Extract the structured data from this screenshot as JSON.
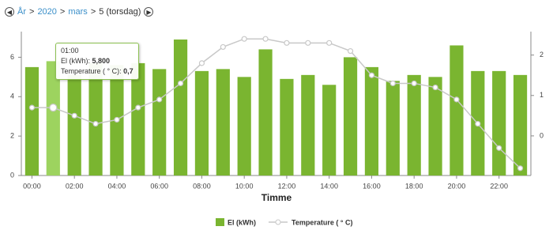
{
  "breadcrumb": [
    "År",
    "2020",
    "mars",
    "5 (torsdag)"
  ],
  "chart_data": {
    "type": "bar-line",
    "x_label": "Timme",
    "categories": [
      "00:00",
      null,
      "02:00",
      null,
      "04:00",
      null,
      "06:00",
      null,
      "08:00",
      null,
      "10:00",
      null,
      "12:00",
      null,
      "14:00",
      null,
      "16:00",
      null,
      "18:00",
      null,
      "20:00",
      null,
      "22:00",
      null
    ],
    "series": [
      {
        "name": "El (kWh)",
        "type": "bar",
        "color": "#7ab530",
        "values": [
          5.5,
          5.8,
          5.1,
          5.7,
          5.6,
          5.7,
          5.4,
          6.9,
          5.3,
          5.4,
          5.0,
          6.4,
          4.9,
          5.1,
          4.6,
          6.0,
          5.5,
          4.8,
          5.1,
          5.0,
          6.6,
          5.3,
          5.3,
          5.1
        ]
      },
      {
        "name": "Temperature ( ° C)",
        "type": "line",
        "axis": "y2",
        "color": "#c8c8c8",
        "values": [
          0.7,
          0.7,
          0.5,
          0.3,
          0.4,
          0.7,
          0.9,
          1.3,
          1.8,
          2.2,
          2.4,
          2.4,
          2.3,
          2.3,
          2.3,
          2.1,
          1.5,
          1.3,
          1.3,
          1.2,
          0.9,
          0.3,
          -0.3,
          -0.8
        ]
      }
    ],
    "ylim": [
      0,
      7.3
    ],
    "yticks": [
      0,
      2,
      4,
      6
    ],
    "y2lim": [
      -0.98,
      2.58
    ],
    "y2ticks": [
      0,
      1,
      2
    ],
    "highlight": {
      "index": 1,
      "color": "#9dd35f"
    },
    "tooltip": {
      "title": "01:00",
      "rows": [
        {
          "label": "El (kWh):",
          "value": "5,800"
        },
        {
          "label": "Temperature ( ° C):",
          "value": "0,7"
        }
      ]
    }
  }
}
